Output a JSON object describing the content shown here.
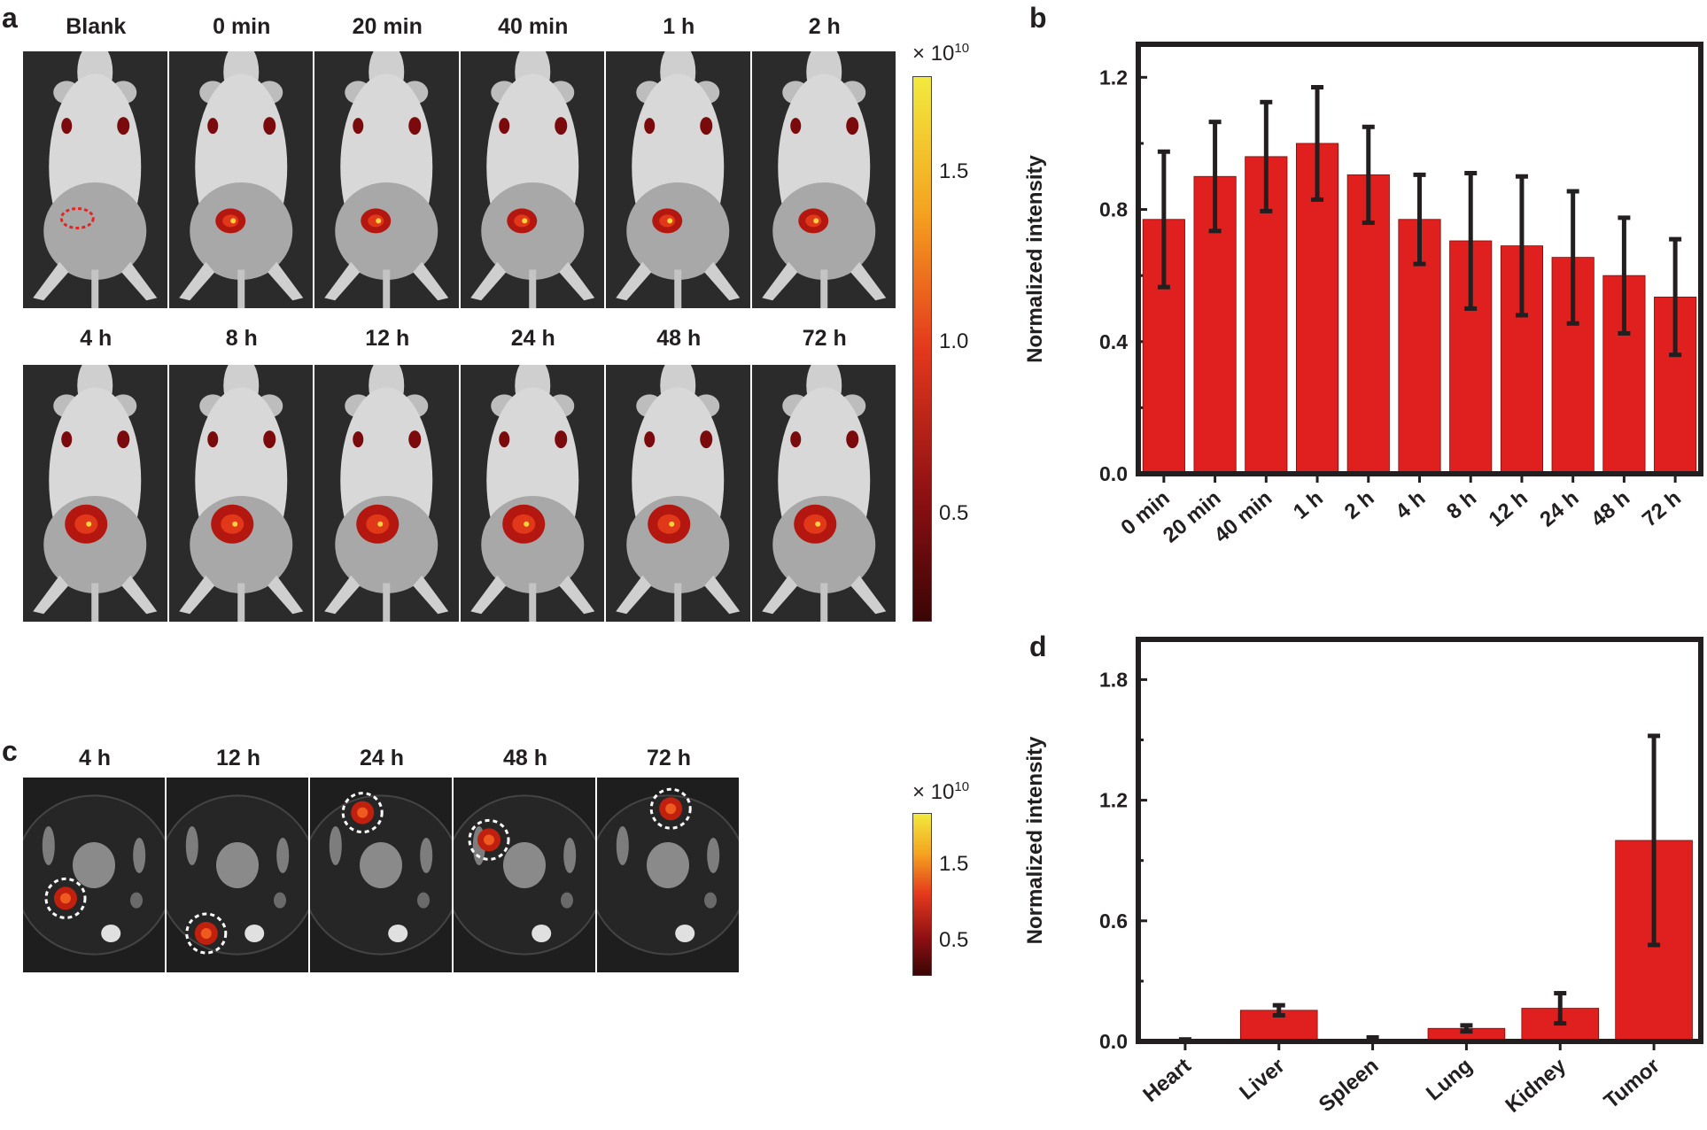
{
  "panel_labels": {
    "a": "a",
    "b": "b",
    "c": "c",
    "d": "d"
  },
  "panel_a": {
    "row1": [
      "Blank",
      "0 min",
      "20 min",
      "40 min",
      "1 h",
      "2 h"
    ],
    "row2": [
      "4 h",
      "8 h",
      "12 h",
      "24 h",
      "48 h",
      "72 h"
    ],
    "colorbar": {
      "scale": "× 10",
      "exponent": "10",
      "ticks": [
        "1.5",
        "1.0",
        "0.5"
      ],
      "colors": [
        "#f2ea3d",
        "#f4a21f",
        "#e4381d",
        "#8a0f12",
        "#3a0505"
      ]
    }
  },
  "panel_c": {
    "labels": [
      "4 h",
      "12 h",
      "24 h",
      "48 h",
      "72 h"
    ],
    "colorbar": {
      "scale": "× 10",
      "exponent": "10",
      "ticks": [
        "1.5",
        "0.5"
      ]
    }
  },
  "chart_data": [
    {
      "id": "b",
      "type": "bar",
      "categories": [
        "0 min",
        "20 min",
        "40 min",
        "1 h",
        "2 h",
        "4 h",
        "8 h",
        "12 h",
        "24 h",
        "48 h",
        "72 h"
      ],
      "values": [
        0.77,
        0.9,
        0.96,
        1.0,
        0.905,
        0.77,
        0.705,
        0.69,
        0.655,
        0.6,
        0.535
      ],
      "errors": [
        0.205,
        0.165,
        0.165,
        0.17,
        0.145,
        0.135,
        0.205,
        0.21,
        0.2,
        0.175,
        0.175
      ],
      "ylabel": "Normalized intensity",
      "ylim": [
        0,
        1.3
      ],
      "yticks": [
        0.0,
        0.4,
        0.8,
        1.2
      ],
      "tick_labels": [
        "0.0",
        "0.4",
        "0.8",
        "1.2"
      ],
      "color": "#e0201e"
    },
    {
      "id": "d",
      "type": "bar",
      "categories": [
        "Heart",
        "Liver",
        "Spleen",
        "Lung",
        "Kidney",
        "Tumor"
      ],
      "values": [
        0.005,
        0.155,
        0.01,
        0.065,
        0.165,
        1.0
      ],
      "errors": [
        0.005,
        0.025,
        0.01,
        0.015,
        0.075,
        0.52
      ],
      "ylabel": "Normalized intensity",
      "ylim": [
        0,
        2.0
      ],
      "yticks": [
        0.0,
        0.6,
        1.2,
        1.8
      ],
      "tick_labels": [
        "0.0",
        "0.6",
        "1.2",
        "1.8"
      ],
      "color": "#e0201e"
    }
  ]
}
